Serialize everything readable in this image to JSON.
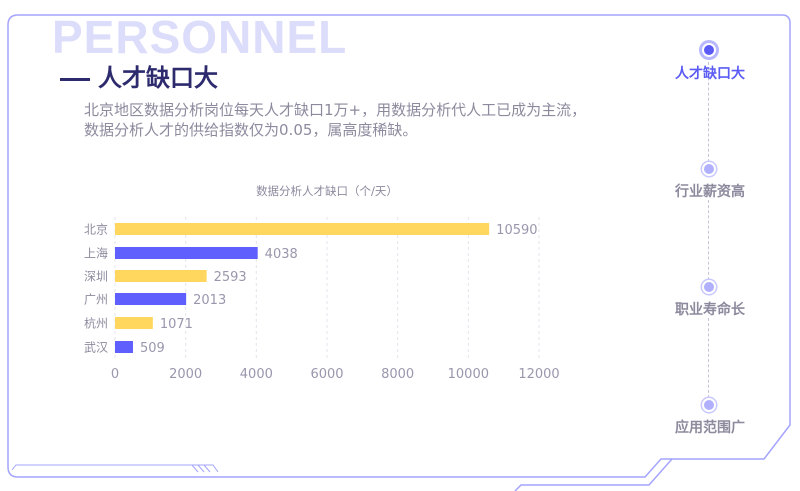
{
  "watermark": "PERSONNEL",
  "header": {
    "title": "人才缺口大"
  },
  "description": [
    "北京地区数据分析岗位每天人才缺口1万+，用数据分析代人工已成为主流，",
    "数据分析人才的供给指数仅为0.05，属高度稀缺。"
  ],
  "nav": {
    "items": [
      {
        "label": "人才缺口大",
        "active": true
      },
      {
        "label": "行业薪资高",
        "active": false
      },
      {
        "label": "职业寿命长",
        "active": false
      },
      {
        "label": "应用范围广",
        "active": false
      }
    ]
  },
  "colors": {
    "accent": "#5b5bf5",
    "yellow": "#ffd75e",
    "blue": "#5f5ffe",
    "frame": "#a4a4ff"
  },
  "chart_data": {
    "type": "bar",
    "orientation": "horizontal",
    "title": "数据分析人才缺口（个/天）",
    "categories": [
      "北京",
      "上海",
      "深圳",
      "广州",
      "杭州",
      "武汉"
    ],
    "values": [
      10590,
      4038,
      2593,
      2013,
      1071,
      509
    ],
    "bar_colors": [
      "#ffd75e",
      "#5f5ffe",
      "#ffd75e",
      "#5f5ffe",
      "#ffd75e",
      "#5f5ffe"
    ],
    "xlim": [
      0,
      12000
    ],
    "xticks": [
      "0",
      "2000",
      "4000",
      "6000",
      "8000",
      "10000",
      "12000"
    ],
    "grid": true
  }
}
